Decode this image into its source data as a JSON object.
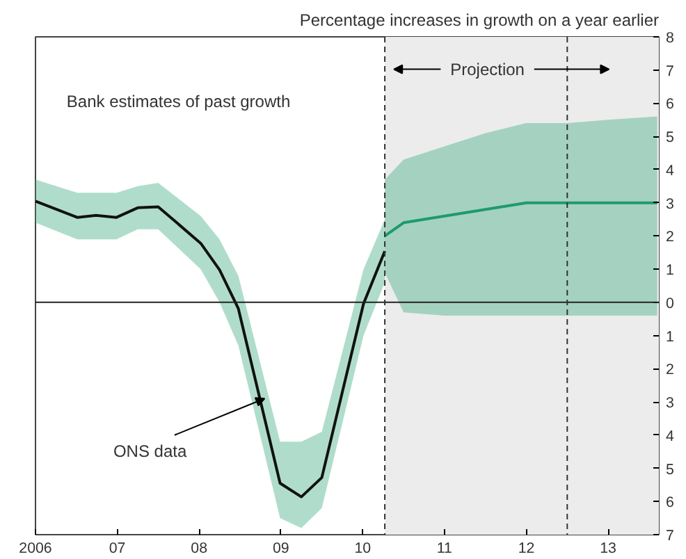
{
  "chart_data": {
    "type": "line",
    "title": "Percentage increases in growth on a year earlier",
    "series": [
      {
        "color": "#1f9a6f",
        "x": [
          2010.27,
          2010.5,
          2011.0,
          2011.5,
          2012.0,
          2012.5,
          2013.0,
          2013.6
        ],
        "values": [
          2.0,
          2.4,
          2.6,
          2.8,
          3.0,
          3.0,
          3.0,
          3.0
        ],
        "lower": [
          0.9,
          -0.3,
          -0.4,
          -0.4,
          -0.4,
          -0.4,
          -0.4,
          -0.4
        ],
        "upper": [
          3.7,
          4.3,
          4.7,
          5.1,
          5.4,
          5.4,
          5.5,
          5.6
        ]
      },
      {
        "color": "#111111",
        "x": [
          2006.0,
          2006.51,
          2006.74,
          2006.99,
          2007.25,
          2007.5,
          2008.02,
          2008.25,
          2008.48,
          2008.99,
          2009.25,
          2009.5,
          2010.01,
          2010.27
        ],
        "values": [
          3.05,
          2.56,
          2.62,
          2.56,
          2.85,
          2.88,
          1.78,
          0.98,
          -0.19,
          -5.45,
          -5.86,
          -5.28,
          -0.04,
          1.54
        ],
        "lower": [
          2.4,
          1.9,
          1.9,
          1.9,
          2.2,
          2.2,
          1.0,
          0.0,
          -1.3,
          -6.5,
          -6.8,
          -6.2,
          -1.0,
          0.6
        ],
        "upper": [
          3.7,
          3.3,
          3.3,
          3.3,
          3.5,
          3.6,
          2.6,
          1.9,
          0.8,
          -4.2,
          -4.2,
          -3.9,
          1.0,
          2.5
        ]
      }
    ],
    "xlim": [
      2006,
      2013.62
    ],
    "xticks": [
      {
        "value": 2006,
        "label": "2006"
      },
      {
        "value": 2007,
        "label": "07"
      },
      {
        "value": 2008,
        "label": "08"
      },
      {
        "value": 2009,
        "label": "09"
      },
      {
        "value": 2010,
        "label": "10"
      },
      {
        "value": 2011,
        "label": "11"
      },
      {
        "value": 2012,
        "label": "12"
      },
      {
        "value": 2013,
        "label": "13"
      }
    ],
    "ylim": [
      -7,
      8
    ],
    "yticks": [
      {
        "value": -7,
        "label": "7"
      },
      {
        "value": -6,
        "label": "6"
      },
      {
        "value": -5,
        "label": "5"
      },
      {
        "value": -4,
        "label": "4"
      },
      {
        "value": -3,
        "label": "3"
      },
      {
        "value": -2,
        "label": "2"
      },
      {
        "value": -1,
        "label": "1"
      },
      0,
      1,
      2,
      3,
      4,
      5,
      6,
      7,
      8
    ],
    "bands": [
      {
        "axis": "x",
        "from": 2010.27,
        "to": 2013.62,
        "color": "#ececec"
      }
    ],
    "ref_lines": [
      {
        "axis": "y",
        "value": 0,
        "color": "#222222",
        "line_style": "solid"
      },
      {
        "axis": "x",
        "value": 2010.27,
        "color": "#333333",
        "line_style": "dashed"
      },
      {
        "axis": "x",
        "value": 2012.5,
        "color": "#333333",
        "line_style": "dashed"
      }
    ],
    "annotations": [
      "Bank estimates of past growth",
      "Projection",
      {
        "text": "ONS data",
        "x": 2008.8,
        "y": -2.9
      }
    ],
    "grid": false
  }
}
